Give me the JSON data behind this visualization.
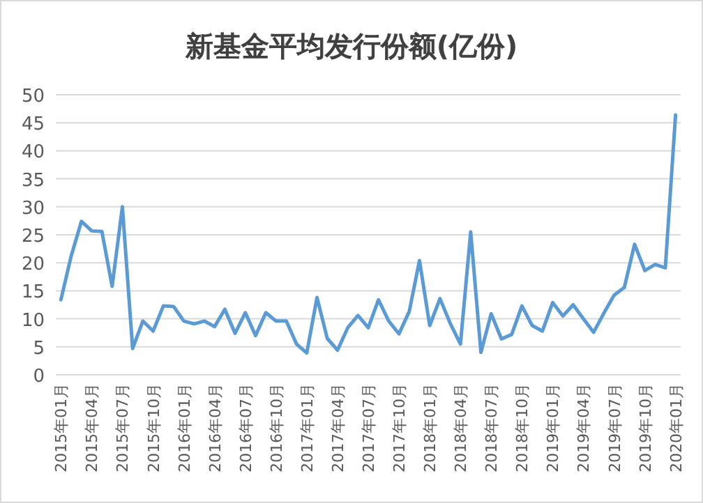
{
  "chart_data": {
    "type": "line",
    "title": "新基金平均发行份额(亿份)",
    "categories": [
      "2015年01月",
      null,
      null,
      "2015年04月",
      null,
      null,
      "2015年07月",
      null,
      null,
      "2015年10月",
      null,
      null,
      "2016年01月",
      null,
      null,
      "2016年04月",
      null,
      null,
      "2016年07月",
      null,
      null,
      "2016年10月",
      null,
      null,
      "2017年01月",
      null,
      null,
      "2017年04月",
      null,
      null,
      "2017年07月",
      null,
      null,
      "2017年10月",
      null,
      null,
      "2018年01月",
      null,
      null,
      "2018年04月",
      null,
      null,
      "2018年07月",
      null,
      null,
      "2018年10月",
      null,
      null,
      "2019年01月",
      null,
      null,
      "2019年04月",
      null,
      null,
      "2019年07月",
      null,
      null,
      "2019年10月",
      null,
      null,
      "2020年01月"
    ],
    "series": [
      {
        "color": "#5b9bd5",
        "values": [
          13.4,
          21.2,
          27.4,
          25.7,
          25.6,
          15.8,
          30.0,
          4.7,
          9.6,
          7.8,
          12.3,
          12.2,
          9.6,
          9.1,
          9.6,
          8.6,
          11.7,
          7.4,
          11.1,
          7.0,
          11.1,
          9.6,
          9.6,
          5.5,
          3.9,
          13.8,
          6.5,
          4.4,
          8.4,
          10.6,
          8.4,
          13.4,
          9.6,
          7.3,
          11.3,
          20.4,
          8.8,
          13.6,
          9.2,
          5.5,
          25.5,
          4.0,
          10.9,
          6.4,
          7.2,
          12.3,
          8.8,
          7.8,
          12.9,
          10.5,
          12.5,
          10.0,
          7.6,
          11.0,
          14.2,
          15.6,
          23.3,
          18.6,
          19.7,
          19.1,
          46.4
        ]
      }
    ],
    "ylim": [
      0,
      50
    ],
    "yticks": [
      0,
      5,
      10,
      15,
      20,
      25,
      30,
      35,
      40,
      45,
      50
    ],
    "grid": "y",
    "marker": "none",
    "line_style": "solid"
  }
}
